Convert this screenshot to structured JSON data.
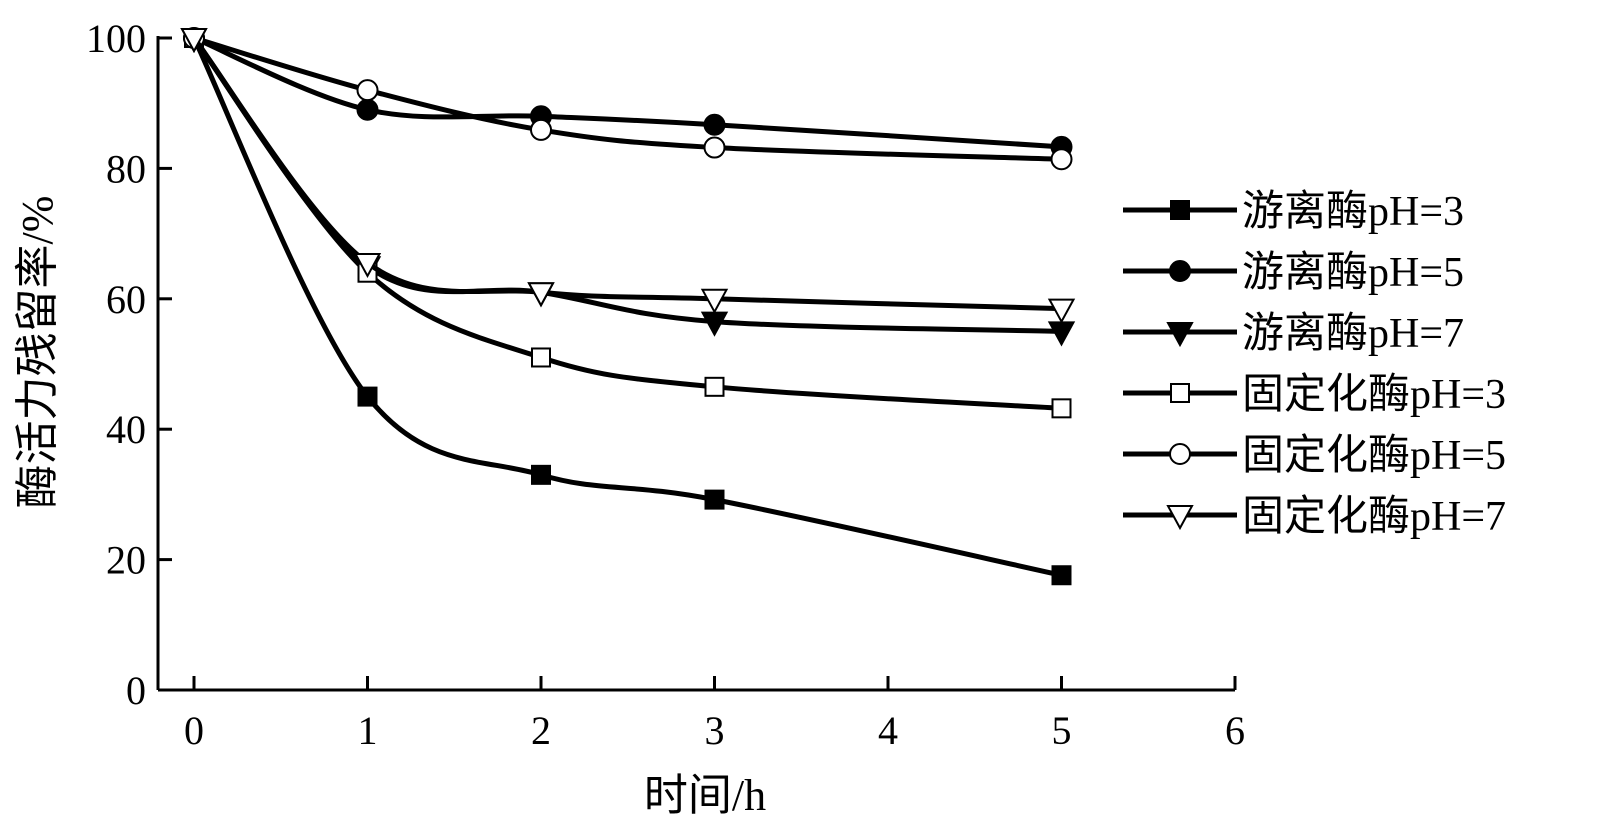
{
  "chart_data": {
    "type": "line",
    "title": "",
    "xlabel": "时间/h",
    "ylabel": "酶活力残留率/%",
    "xlim": [
      0,
      6
    ],
    "ylim": [
      0,
      100
    ],
    "xticks": [
      "0",
      "1",
      "2",
      "3",
      "4",
      "5",
      "6"
    ],
    "yticks": [
      "0",
      "20",
      "40",
      "60",
      "80",
      "100"
    ],
    "grid": false,
    "legend_position": "right",
    "x": [
      0,
      1,
      2,
      3,
      5
    ],
    "series": [
      {
        "name": "游离酶pH=3",
        "marker": "filled-square",
        "values": [
          100,
          45,
          33,
          29.2,
          17.6
        ]
      },
      {
        "name": "游离酶pH=5",
        "marker": "filled-circle",
        "values": [
          100,
          89,
          88,
          86.7,
          83.3
        ]
      },
      {
        "name": "游离酶pH=7",
        "marker": "filled-triangle-down",
        "values": [
          100,
          65,
          61,
          56.5,
          55
        ]
      },
      {
        "name": "固定化酶pH=3",
        "marker": "open-square",
        "values": [
          100,
          64,
          51,
          46.5,
          43.2
        ]
      },
      {
        "name": "固定化酶pH=5",
        "marker": "open-circle",
        "values": [
          100,
          92,
          85.9,
          83.2,
          81.4
        ]
      },
      {
        "name": "固定化酶pH=7",
        "marker": "open-triangle-down",
        "values": [
          100,
          65.5,
          61,
          60,
          58.5
        ]
      }
    ]
  }
}
